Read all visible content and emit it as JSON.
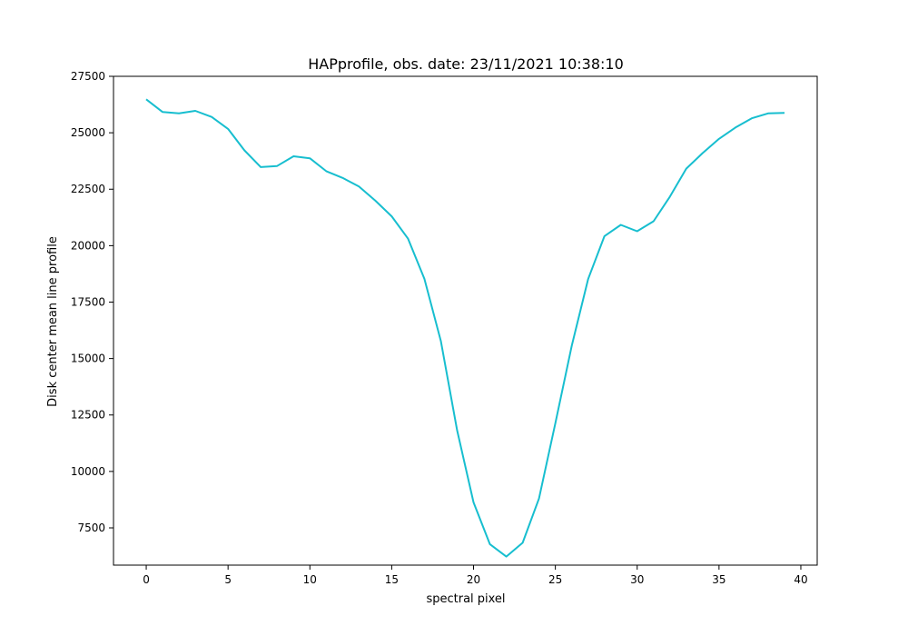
{
  "chart_data": {
    "type": "line",
    "title": "HAPprofile, obs. date: 23/11/2021 10:38:10",
    "xlabel": "spectral pixel",
    "ylabel": "Disk center mean line profile",
    "xlim": [
      -2,
      41
    ],
    "ylim": [
      5850,
      27500
    ],
    "xticks": [
      0,
      5,
      10,
      15,
      20,
      25,
      30,
      35,
      40
    ],
    "yticks": [
      7500,
      10000,
      12500,
      15000,
      17500,
      20000,
      22500,
      25000,
      27500
    ],
    "grid": false,
    "line_color": "#17becf",
    "series": [
      {
        "x": [
          0,
          1,
          2,
          3,
          4,
          5,
          6,
          7,
          8,
          9,
          10,
          11,
          12,
          13,
          14,
          15,
          16,
          17,
          18,
          19,
          20,
          21,
          22,
          23,
          24,
          25,
          26,
          27,
          28,
          29,
          30,
          31,
          32,
          33,
          34,
          35,
          36,
          37,
          38,
          39
        ],
        "values": [
          26480,
          25920,
          25860,
          25970,
          25700,
          25170,
          24220,
          23480,
          23530,
          23960,
          23870,
          23300,
          23000,
          22620,
          21990,
          21300,
          20310,
          18530,
          15780,
          11810,
          8630,
          6780,
          6230,
          6840,
          8800,
          12130,
          15570,
          18520,
          20420,
          20920,
          20640,
          21080,
          22170,
          23410,
          24100,
          24730,
          25230,
          25640,
          25860,
          25880
        ]
      }
    ]
  }
}
